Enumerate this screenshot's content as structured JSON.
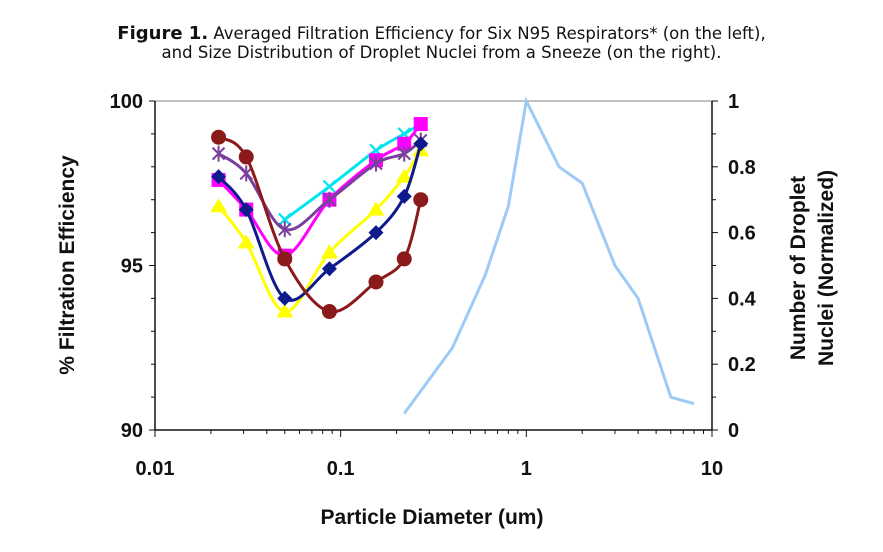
{
  "figure": {
    "label": "Figure 1.",
    "caption_line1": "Averaged Filtration Efficiency for Six N95 Respirators* (on the left),",
    "caption_line2": "and Size Distribution of Droplet Nuclei from a Sneeze (on the right)."
  },
  "chart_data": {
    "type": "line",
    "xlabel": "Particle Diameter (um)",
    "ylabel_left": "% Filtration Efficiency",
    "ylabel_right_line1": "Number of Droplet",
    "ylabel_right_line2": "Nuclei (Normalized)",
    "x_scale": "log",
    "xlim": [
      0.01,
      10
    ],
    "x_ticks": [
      {
        "value": 0.01,
        "label": "0.01"
      },
      {
        "value": 0.1,
        "label": "0.1"
      },
      {
        "value": 1,
        "label": "1"
      },
      {
        "value": 10,
        "label": "10"
      }
    ],
    "ylim_left": [
      90,
      100
    ],
    "y_ticks_left": [
      {
        "value": 90,
        "label": "90"
      },
      {
        "value": 95,
        "label": "95"
      },
      {
        "value": 100,
        "label": "100"
      }
    ],
    "ylim_right": [
      0,
      1
    ],
    "y_ticks_right": [
      {
        "value": 0,
        "label": "0"
      },
      {
        "value": 0.2,
        "label": "0.2"
      },
      {
        "value": 0.4,
        "label": "0.4"
      },
      {
        "value": 0.6,
        "label": "0.6"
      },
      {
        "value": 0.8,
        "label": "0.8"
      },
      {
        "value": 1,
        "label": "1"
      }
    ],
    "grid": false,
    "legend": "none",
    "series": [
      {
        "axis": "left",
        "color": "#00e5ee",
        "marker": "x",
        "x": [
          0.05,
          0.087,
          0.155,
          0.22,
          0.27
        ],
        "y": [
          96.4,
          97.4,
          98.5,
          99.0,
          99.3
        ]
      },
      {
        "axis": "left",
        "color": "#ff00ff",
        "marker": "square",
        "x": [
          0.022,
          0.031,
          0.05,
          0.087,
          0.155,
          0.22,
          0.27
        ],
        "y": [
          97.6,
          96.7,
          95.3,
          97.0,
          98.2,
          98.7,
          99.3
        ]
      },
      {
        "axis": "left",
        "color": "#7b3f9e",
        "marker": "star",
        "x": [
          0.022,
          0.031,
          0.05,
          0.087,
          0.155,
          0.22,
          0.27
        ],
        "y": [
          98.4,
          97.8,
          96.1,
          97.0,
          98.1,
          98.4,
          98.8
        ]
      },
      {
        "axis": "left",
        "color": "#ffff00",
        "marker": "triangle",
        "x": [
          0.022,
          0.031,
          0.05,
          0.087,
          0.155,
          0.22,
          0.27
        ],
        "y": [
          96.8,
          95.7,
          93.6,
          95.4,
          96.7,
          97.7,
          98.5
        ]
      },
      {
        "axis": "left",
        "color": "#0f1b8c",
        "marker": "diamond",
        "x": [
          0.022,
          0.031,
          0.05,
          0.087,
          0.155,
          0.22,
          0.27
        ],
        "y": [
          97.7,
          96.7,
          94.0,
          94.9,
          96.0,
          97.1,
          98.7
        ]
      },
      {
        "axis": "left",
        "color": "#8b1a1a",
        "marker": "circle",
        "x": [
          0.022,
          0.031,
          0.05,
          0.087,
          0.155,
          0.22,
          0.27
        ],
        "y": [
          98.9,
          98.3,
          95.2,
          93.6,
          94.5,
          95.2,
          97.0
        ]
      },
      {
        "axis": "right",
        "color": "#9ecbf5",
        "marker": "none",
        "x": [
          0.22,
          0.4,
          0.6,
          0.8,
          1.0,
          1.5,
          2.0,
          3.0,
          4.0,
          6.0,
          8.0
        ],
        "y": [
          0.05,
          0.25,
          0.47,
          0.68,
          1.0,
          0.8,
          0.75,
          0.5,
          0.4,
          0.1,
          0.08
        ]
      }
    ]
  }
}
